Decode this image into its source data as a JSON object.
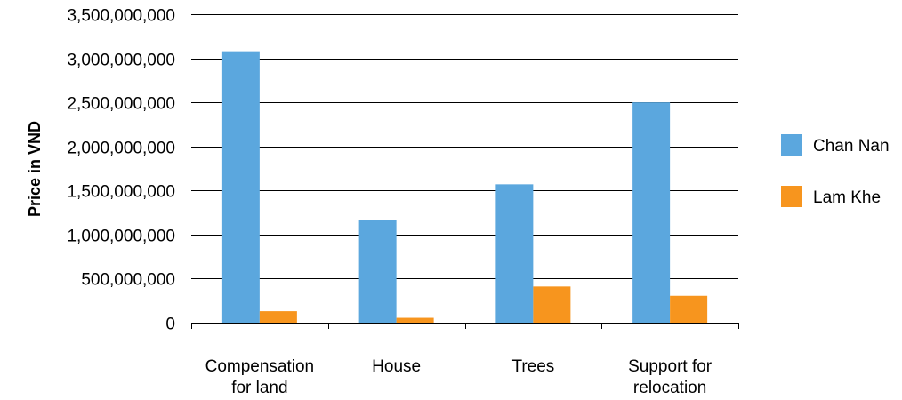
{
  "chart_data": {
    "type": "bar",
    "title": "",
    "xlabel": "",
    "ylabel": "Price in VND",
    "ylim": [
      0,
      3500000000
    ],
    "y_ticks": [
      0,
      500000000,
      1000000000,
      1500000000,
      2000000000,
      2500000000,
      3000000000,
      3500000000
    ],
    "y_tick_labels": [
      "0",
      "500,000,000",
      "1,000,000,000",
      "1,500,000,000",
      "2,000,000,000",
      "2,500,000,000",
      "3,000,000,000",
      "3,500,000,000"
    ],
    "categories": [
      [
        "Compensation",
        "for land"
      ],
      [
        "House"
      ],
      [
        "Trees"
      ],
      [
        "Support for",
        "relocation"
      ]
    ],
    "series": [
      {
        "name": "Chan Nan",
        "color": "#5BA7DE",
        "values": [
          3080000000,
          1170000000,
          1570000000,
          2500000000
        ]
      },
      {
        "name": "Lam Khe",
        "color": "#F7951E",
        "values": [
          130000000,
          55000000,
          410000000,
          305000000
        ]
      }
    ],
    "grid": true,
    "legend_position": "right"
  }
}
